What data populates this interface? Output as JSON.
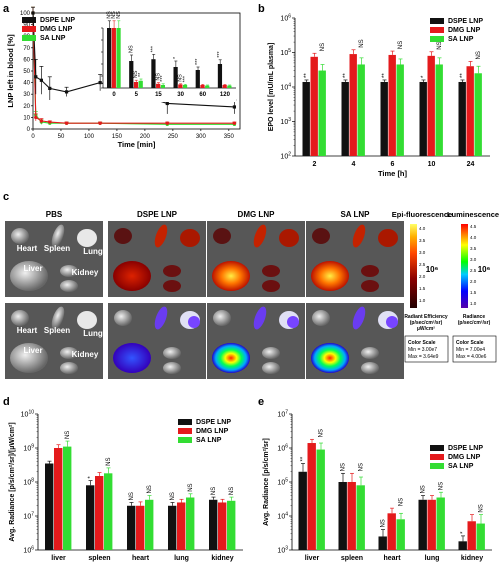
{
  "panel_labels": {
    "a": "a",
    "b": "b",
    "c": "c",
    "d": "d",
    "e": "e"
  },
  "legend": [
    {
      "name": "DSPE LNP",
      "color": "#111111"
    },
    {
      "name": "DMG LNP",
      "color": "#e41a1c"
    },
    {
      "name": "SA LNP",
      "color": "#33dd33"
    }
  ],
  "chart_data": [
    {
      "id": "a",
      "type": "line",
      "xlabel": "Time [min]",
      "ylabel": "LNP left in blood [%]",
      "xlim": [
        0,
        370
      ],
      "ylim": [
        0,
        100
      ],
      "xticks": [
        0,
        50,
        100,
        150,
        200,
        250,
        300,
        350
      ],
      "yticks": [
        0,
        10,
        20,
        30,
        40,
        50,
        60,
        70,
        80,
        90,
        100
      ],
      "series": [
        {
          "name": "DSPE LNP",
          "x": [
            0,
            5,
            15,
            30,
            60,
            120,
            240,
            360
          ],
          "y": [
            100,
            45,
            42,
            35,
            32,
            40,
            22,
            19
          ],
          "err": [
            10,
            15,
            12,
            10,
            4,
            7,
            9,
            6
          ]
        },
        {
          "name": "DMG LNP",
          "x": [
            0,
            5,
            15,
            30,
            60,
            120,
            240,
            360
          ],
          "y": [
            100,
            10,
            7,
            6,
            5,
            5,
            5,
            5
          ],
          "err": [
            15,
            3,
            2,
            1,
            1,
            1,
            1,
            1
          ]
        },
        {
          "name": "SA LNP",
          "x": [
            0,
            5,
            15,
            30,
            60,
            120,
            240,
            360
          ],
          "y": [
            100,
            12,
            6,
            5,
            5,
            5,
            4,
            4
          ],
          "err": [
            10,
            3,
            2,
            1,
            1,
            1,
            1,
            1
          ]
        }
      ]
    },
    {
      "id": "a-inset",
      "type": "bar",
      "categories": [
        "0",
        "5",
        "15",
        "30",
        "60",
        "120"
      ],
      "ylim": [
        0,
        100
      ],
      "series": [
        {
          "name": "DSPE LNP",
          "values": [
            100,
            45,
            48,
            35,
            30,
            40
          ],
          "err": [
            12,
            10,
            8,
            10,
            5,
            7
          ]
        },
        {
          "name": "DMG LNP",
          "values": [
            100,
            10,
            7,
            6,
            5,
            5
          ],
          "err": [
            15,
            3,
            2,
            1,
            1,
            1
          ]
        },
        {
          "name": "SA LNP",
          "values": [
            100,
            12,
            5,
            5,
            4,
            4
          ],
          "err": [
            12,
            3,
            2,
            1,
            1,
            1
          ]
        }
      ],
      "annotations": [
        [
          "NS",
          "NS",
          "NS"
        ],
        [
          "NS",
          "NS",
          "**"
        ],
        [
          "***",
          "NS",
          "***"
        ],
        [
          "*",
          "NS",
          "***"
        ],
        [
          "***",
          "",
          ""
        ],
        [
          "***",
          "",
          ""
        ]
      ]
    },
    {
      "id": "b",
      "type": "bar",
      "categories": [
        "2",
        "4",
        "6",
        "10",
        "24"
      ],
      "xlabel": "Time [h]",
      "ylabel": "EPO level [mU/mL plasma]",
      "yscale": "log",
      "ylim": [
        100,
        1000000
      ],
      "yticks": [
        "10^2",
        "10^3",
        "10^4",
        "10^5",
        "10^6"
      ],
      "series": [
        {
          "name": "DSPE LNP",
          "values": [
            14000,
            14000,
            14000,
            14000,
            14000
          ],
          "err": [
            2000,
            2000,
            2000,
            2000,
            2000
          ]
        },
        {
          "name": "DMG LNP",
          "values": [
            75000,
            90000,
            85000,
            80000,
            40000
          ],
          "err": [
            20000,
            30000,
            25000,
            25000,
            15000
          ]
        },
        {
          "name": "SA LNP",
          "values": [
            30000,
            45000,
            45000,
            45000,
            25000
          ],
          "err": [
            15000,
            25000,
            20000,
            25000,
            15000
          ]
        }
      ],
      "annotations": [
        [
          "**",
          "NS"
        ],
        [
          "**",
          "NS"
        ],
        [
          "**",
          "NS"
        ],
        [
          "*",
          "NS"
        ],
        [
          "**",
          "NS"
        ]
      ]
    },
    {
      "id": "d",
      "type": "bar",
      "categories": [
        "liver",
        "spleen",
        "heart",
        "lung",
        "kidney"
      ],
      "ylabel": "Avg. Radiance [p/s/cm²/sr]/[µW/cm²]",
      "yscale": "log",
      "ylim": [
        1000000,
        10000000000
      ],
      "yticks": [
        "10^6",
        "10^7",
        "10^8",
        "10^9",
        "10^10"
      ],
      "series": [
        {
          "name": "DSPE LNP",
          "values": [
            350000000,
            80000000,
            20000000,
            20000000,
            30000000
          ],
          "err": [
            60000000,
            30000000,
            5000000,
            5000000,
            6000000
          ]
        },
        {
          "name": "DMG LNP",
          "values": [
            1000000000,
            150000000,
            20000000,
            25000000,
            25000000
          ],
          "err": [
            250000000,
            40000000,
            6000000,
            6000000,
            6000000
          ]
        },
        {
          "name": "SA LNP",
          "values": [
            1100000000,
            180000000,
            30000000,
            35000000,
            28000000
          ],
          "err": [
            500000000,
            80000000,
            10000000,
            10000000,
            8000000
          ]
        }
      ],
      "annotations": [
        [
          "",
          "NS"
        ],
        [
          "*",
          "NS"
        ],
        [
          "NS",
          "NS"
        ],
        [
          "NS",
          "NS"
        ],
        [
          "NS",
          "NS"
        ]
      ]
    },
    {
      "id": "e",
      "type": "bar",
      "categories": [
        "liver",
        "spleen",
        "heart",
        "lung",
        "kidney"
      ],
      "ylabel": "Avg. Radiance [p/s/cm²/sr]",
      "yscale": "log",
      "ylim": [
        1000,
        10000000
      ],
      "yticks": [
        "10^3",
        "10^4",
        "10^5",
        "10^6",
        "10^7"
      ],
      "series": [
        {
          "name": "DSPE LNP",
          "values": [
            200000,
            100000,
            2500,
            30000,
            1800
          ],
          "err": [
            150000,
            80000,
            1500,
            10000,
            800
          ]
        },
        {
          "name": "DMG LNP",
          "values": [
            1400000,
            100000,
            12000,
            30000,
            7000
          ],
          "err": [
            400000,
            80000,
            5000,
            10000,
            4000
          ]
        },
        {
          "name": "SA LNP",
          "values": [
            900000,
            80000,
            8000,
            35000,
            6000
          ],
          "err": [
            500000,
            60000,
            4000,
            15000,
            5000
          ]
        }
      ],
      "annotations": [
        [
          "**",
          "NS"
        ],
        [
          "NS",
          "NS"
        ],
        [
          "NS",
          "NS"
        ],
        [
          "NS",
          "NS"
        ],
        [
          "*",
          "NS"
        ]
      ]
    }
  ],
  "panel_c": {
    "columns": [
      "PBS",
      "DSPE LNP",
      "DMG LNP",
      "SA LNP"
    ],
    "organ_labels": [
      "Heart",
      "Spleen",
      "Lung",
      "Liver",
      "Kidney"
    ],
    "epi_title": "Epi-fluorescence",
    "lum_title": "Luminescence",
    "epi_scale_ticks": [
      "4.0",
      "3.5",
      "3.0",
      "2.5",
      "2.0",
      "1.5",
      "1.0"
    ],
    "lum_scale_ticks": [
      "4.5",
      "4.0",
      "3.5",
      "3.0",
      "2.5",
      "2.0",
      "1.5",
      "1.0"
    ],
    "epi_exp": "10⁶",
    "lum_exp": "10⁶",
    "epi_unit_1": "Radiant Efficiency",
    "epi_unit_2": "(p/sec/cm²/sr)",
    "epi_unit_3": "µW/cm²",
    "lum_unit_1": "Radiance",
    "lum_unit_2": "(p/sec/cm²/sr)",
    "epi_cs_title": "Color Scale",
    "epi_cs_min": "Min = 3.00e7",
    "epi_cs_max": "Max = 3.64e9",
    "lum_cs_title": "Color Scale",
    "lum_cs_min": "Min = 7.00e4",
    "lum_cs_max": "Max = 4.00e6"
  }
}
